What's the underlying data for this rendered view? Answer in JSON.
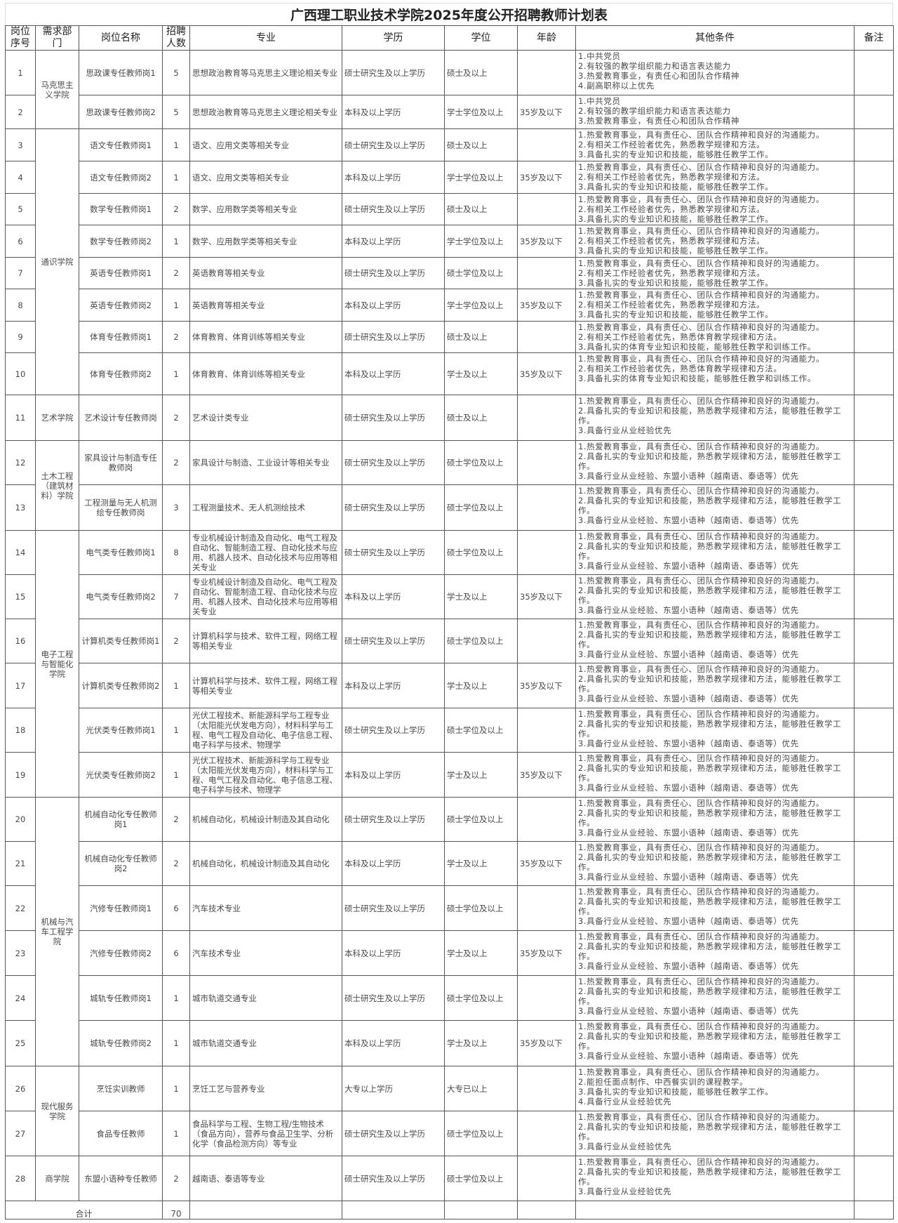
{
  "title": "广西理工职业技术学院2025年度公开招聘教师计划表",
  "headers": {
    "no": "岗位序号",
    "dept": "需求部门",
    "name": "岗位名称",
    "count": "招聘人数",
    "major": "专业",
    "edu": "学历",
    "degree": "学位",
    "age": "年龄",
    "conditions": "其他条件",
    "note": "备注"
  },
  "departments": [
    {
      "name": "马克思主义学院",
      "rows": [
        {
          "no": "1",
          "name": "思政课专任教师岗1",
          "count": "5",
          "major": "思想政治教育等马克思主义理论相关专业",
          "edu": "硕士研究生及以上学历",
          "degree": "硕士及以上",
          "age": "",
          "note": "",
          "conditions": [
            "1.中共党员",
            "2.有较强的教学组织能力和语言表达能力",
            "3.热爱教育事业，有责任心和团队合作精神",
            "4.副高职称以上优先"
          ]
        },
        {
          "no": "2",
          "name": "思政课专任教师岗2",
          "count": "5",
          "major": "思想政治教育等马克思主义理论相关专业",
          "edu": "本科及以上学历",
          "degree": "学士学位及以上",
          "age": "35岁及以下",
          "note": "",
          "conditions": [
            "1.中共党员",
            "2.有较强的教学组织能力和语言表达能力",
            "3.热爱教育事业，有责任心和团队合作精神"
          ]
        }
      ]
    },
    {
      "name": "通识学院",
      "rows": [
        {
          "no": "3",
          "name": "语文专任教师岗1",
          "count": "1",
          "major": "语文、应用文类等相关专业",
          "edu": "硕士研究生及以上学历",
          "degree": "硕士及以上",
          "age": "",
          "note": "",
          "conditions": [
            "1.热爱教育事业，具有责任心、团队合作精神和良好的沟通能力。",
            "2.有相关工作经验者优先，熟悉教学规律和方法。",
            "3.具备扎实的专业知识和技能，能够胜任教学工作。"
          ]
        },
        {
          "no": "4",
          "name": "语文专任教师岗2",
          "count": "1",
          "major": "语文、应用文类等相关专业",
          "edu": "本科及以上学历",
          "degree": "学士学位及以上",
          "age": "35岁及以下",
          "note": "",
          "conditions": [
            "1.热爱教育事业，具有责任心、团队合作精神和良好的沟通能力。",
            "2.有相关工作经验者优先，熟悉教学规律和方法。",
            "3.具备扎实的专业知识和技能，能够胜任教学工作。"
          ]
        },
        {
          "no": "5",
          "name": "数学专任教师岗1",
          "count": "2",
          "major": "数学、应用数学类等相关专业",
          "edu": "硕士研究生及以上学历",
          "degree": "硕士及以上",
          "age": "",
          "note": "",
          "conditions": [
            "1.热爱教育事业，具有责任心、团队合作精神和良好的沟通能力。",
            "2.有相关工作经验者优先，熟悉教学规律和方法。",
            "3.具备扎实的专业知识和技能，能够胜任教学工作。"
          ]
        },
        {
          "no": "6",
          "name": "数学专任教师岗2",
          "count": "1",
          "major": "数学、应用数学类等相关专业",
          "edu": "本科及以上学历",
          "degree": "学士学位及以上",
          "age": "35岁及以下",
          "note": "",
          "conditions": [
            "1.热爱教育事业，具有责任心、团队合作精神和良好的沟通能力。",
            "2.有相关工作经验者优先，熟悉教学规律和方法。",
            "3.具备扎实的专业知识和技能，能够胜任教学工作。"
          ]
        },
        {
          "no": "7",
          "name": "英语专任教师岗1",
          "count": "2",
          "major": "英语教育等相关专业",
          "edu": "硕士研究生及以上学历",
          "degree": "硕士学位及以上",
          "age": "",
          "note": "",
          "conditions": [
            "1.热爱教育事业，具有责任心、团队合作精神和良好的沟通能力。",
            "2.有相关工作经验者优先，熟悉教学规律和方法。",
            "3.具备扎实的专业知识和技能，能够胜任教学工作。"
          ]
        },
        {
          "no": "8",
          "name": "英语专任教师岗2",
          "count": "1",
          "major": "英语教育等相关专业",
          "edu": "本科及以上学历",
          "degree": "学士学位及以上",
          "age": "35岁及以下",
          "note": "",
          "conditions": [
            "1.热爱教育事业，具有责任心、团队合作精神和良好的沟通能力。",
            "2.有相关工作经验者优先，熟悉教学规律和方法。",
            "3.具备扎实的专业知识和技能，能够胜任教学工作。"
          ]
        },
        {
          "no": "9",
          "name": "体育专任教师岗1",
          "count": "2",
          "major": "体育教育、体育训练等相关专业",
          "edu": "硕士研究生及以上学历",
          "degree": "硕士及以上",
          "age": "",
          "note": "",
          "conditions": [
            "1.热爱教育事业，具有责任心、团队合作精神和良好的沟通能力。",
            "2.有相关工作经验者优先，熟悉体育教学规律和方法。",
            "3.具备扎实的体育专业知识和技能，能够胜任教学和训练工作。"
          ]
        },
        {
          "no": "10",
          "name": "体育专任教师岗2",
          "count": "1",
          "major": "体育教育、体育训练等相关专业",
          "edu": "本科及以上学历",
          "degree": "学士及以上",
          "age": "35岁及以下",
          "note": "",
          "conditions": [
            "1.热爱教育事业，具有责任心、团队合作精神和良好的沟通能力。",
            "2.有相关工作经验者优先，熟悉体育教学规律和方法。",
            "3.具备扎实的体育专业知识和技能，能够胜任教学和训练工作。"
          ]
        }
      ]
    },
    {
      "name": "艺术学院",
      "rows": [
        {
          "no": "11",
          "name": "艺术设计专任教师岗",
          "count": "2",
          "major": "艺术设计类专业",
          "edu": "硕士研究生及以上学历",
          "degree": "硕士及以上",
          "age": "",
          "note": "",
          "conditions": [
            "1.热爱教育事业，具有责任心、团队合作精神和良好的沟通能力。",
            "2.具备扎实的专业知识和技能，熟悉教学规律和方法，能够胜任教学工作。",
            "3.具备行业从业经验优先"
          ]
        }
      ]
    },
    {
      "name": "土木工程（建筑材料）学院",
      "rows": [
        {
          "no": "12",
          "name": "家具设计与制造专任教师岗",
          "count": "2",
          "major": "家具设计与制造、工业设计等相关专业",
          "edu": "硕士研究生及以上学历",
          "degree": "硕士学位及以上",
          "age": "",
          "note": "",
          "conditions": [
            "1.热爱教育事业，具有责任心、团队合作精神和良好的沟通能力。",
            "2.具备扎实的专业知识和技能，熟悉教学规律和方法，能够胜任教学工作。",
            "3.具备行业从业经验、东盟小语种（越南语、泰语等）优先"
          ]
        },
        {
          "no": "13",
          "name": "工程测量与无人机测绘专任教师岗",
          "count": "3",
          "major": "工程测量技术、无人机测绘技术",
          "edu": "硕士研究生及以上学历",
          "degree": "硕士学位及以上",
          "age": "",
          "note": "",
          "conditions": [
            "1.热爱教育事业，具有责任心、团队合作精神和良好的沟通能力。",
            "2.具备扎实的专业知识和技能，熟悉教学规律和方法，能够胜任教学工作。",
            "3.具备行业从业经验、东盟小语种（越南语、泰语等）优先"
          ]
        }
      ]
    },
    {
      "name": "电子工程与智能化学院",
      "rows": [
        {
          "no": "14",
          "name": "电气类专任教师岗1",
          "count": "8",
          "major": "专业机械设计制造及自动化、电气工程及自动化、智能制造工程、自动化技术与应用、机器人技术、自动化技术与应用等相关专业",
          "edu": "硕士研究生及以上学历",
          "degree": "硕士学位及以上",
          "age": "",
          "note": "",
          "conditions": [
            "1.热爱教育事业，具有责任心、团队合作精神和良好的沟通能力。",
            "2.具备扎实的专业知识和技能，熟悉教学规律和方法，能够胜任教学工作。",
            "3.具备行业从业经验、东盟小语种（越南语、泰语等）优先"
          ]
        },
        {
          "no": "15",
          "name": "电气类专任教师岗2",
          "count": "7",
          "major": "专业机械设计制造及自动化、电气工程及自动化、智能制造工程、自动化技术与应用、机器人技术、自动化技术与应用等相关专业",
          "edu": "本科及以上学历",
          "degree": "学士及以上",
          "age": "35岁及以下",
          "note": "",
          "conditions": [
            "1.热爱教育事业，具有责任心、团队合作精神和良好的沟通能力。",
            "2.具备扎实的专业知识和技能，熟悉教学规律和方法，能够胜任教学工作。",
            "3.具备行业从业经验、东盟小语种（越南语、泰语等）优先"
          ]
        },
        {
          "no": "16",
          "name": "计算机类专任教师岗1",
          "count": "2",
          "major": "计算机科学与技术、软件工程，网络工程等相关专业",
          "edu": "硕士研究生及以上学历",
          "degree": "硕士学位及以上",
          "age": "",
          "note": "",
          "conditions": [
            "1.热爱教育事业，具有责任心、团队合作精神和良好的沟通能力。",
            "2.具备扎实的专业知识和技能，熟悉教学规律和方法，能够胜任教学工作。",
            "3.具备行业从业经验、东盟小语种（越南语、泰语等）优先"
          ]
        },
        {
          "no": "17",
          "name": "计算机类专任教师岗2",
          "count": "1",
          "major": "计算机科学与技术、软件工程，网络工程等相关专业",
          "edu": "本科及以上学历",
          "degree": "学士及以上",
          "age": "35岁及以下",
          "note": "",
          "conditions": [
            "1.热爱教育事业，具有责任心、团队合作精神和良好的沟通能力。",
            "2.具备扎实的专业知识和技能，熟悉教学规律和方法，能够胜任教学工作。",
            "3.具备行业从业经验、东盟小语种（越南语、泰语等）优先"
          ]
        },
        {
          "no": "18",
          "name": "光伏类专任教师岗1",
          "count": "1",
          "major": "光伏工程技术、新能源科学与工程专业（太阳能光伏发电方向），材料科学与工程、电气工程及自动化、电子信息工程、电子科学与技术、物理学",
          "edu": "硕士研究生及以上学历",
          "degree": "硕士学位及以上",
          "age": "",
          "note": "",
          "conditions": [
            "1.热爱教育事业，具有责任心、团队合作精神和良好的沟通能力。",
            "2.具备扎实的专业知识和技能，熟悉教学规律和方法，能够胜任教学工作。",
            "3.具备行业从业经验、东盟小语种（越南语、泰语等）优先"
          ]
        },
        {
          "no": "19",
          "name": "光伏类专任教师岗2",
          "count": "1",
          "major": "光伏工程技术、新能源科学与工程专业（太阳能光伏发电方向），材料科学与工程、电气工程及自动化、电子信息工程、电子科学与技术、物理学",
          "edu": "本科及以上学历",
          "degree": "学士及以上",
          "age": "35岁及以下",
          "note": "",
          "conditions": [
            "1.热爱教育事业，具有责任心、团队合作精神和良好的沟通能力。",
            "2.具备扎实的专业知识和技能，熟悉教学规律和方法，能够胜任教学工作。",
            "3.具备行业从业经验、东盟小语种（越南语、泰语等）优先"
          ]
        }
      ]
    },
    {
      "name": "机械与汽车工程学院",
      "rows": [
        {
          "no": "20",
          "name": "机械自动化专任教师岗1",
          "count": "2",
          "major": "机械自动化，机械设计制造及其自动化",
          "edu": "硕士研究生及以上学历",
          "degree": "硕士学位及以上",
          "age": "",
          "note": "",
          "conditions": [
            "1.热爱教育事业，具有责任心、团队合作精神和良好的沟通能力。",
            "2.具备扎实的专业知识和技能，熟悉教学规律和方法，能够胜任教学工作。",
            "3.具备行业从业经验、东盟小语种（越南语、泰语等）优先"
          ]
        },
        {
          "no": "21",
          "name": "机械自动化专任教师岗2",
          "count": "2",
          "major": "机械自动化，机械设计制造及其自动化",
          "edu": "本科及以上学历",
          "degree": "学士及以上",
          "age": "35岁及以下",
          "note": "",
          "conditions": [
            "1.热爱教育事业，具有责任心、团队合作精神和良好的沟通能力。",
            "2.具备扎实的专业知识和技能，熟悉教学规律和方法，能够胜任教学工作。",
            "3.具备行业从业经验、东盟小语种（越南语、泰语等）优先"
          ]
        },
        {
          "no": "22",
          "name": "汽修专任教师岗1",
          "count": "6",
          "major": "汽车技术专业",
          "edu": "硕士研究生及以上学历",
          "degree": "硕士学位及以上",
          "age": "",
          "note": "",
          "conditions": [
            "1.热爱教育事业，具有责任心、团队合作精神和良好的沟通能力。",
            "2.具备扎实的专业知识和技能，熟悉教学规律和方法，能够胜任教学工作。",
            "3.具备行业从业经验、东盟小语种（越南语、泰语等）优先"
          ]
        },
        {
          "no": "23",
          "name": "汽修专任教师岗2",
          "count": "6",
          "major": "汽车技术专业",
          "edu": "本科及以上学历",
          "degree": "学士及以上",
          "age": "35岁及以下",
          "note": "",
          "conditions": [
            "1.热爱教育事业，具有责任心、团队合作精神和良好的沟通能力。",
            "2.具备扎实的专业知识和技能，熟悉教学规律和方法，能够胜任教学工作。",
            "3.具备行业从业经验、东盟小语种（越南语、泰语等）优先"
          ]
        },
        {
          "no": "24",
          "name": "城轨专任教师岗1",
          "count": "1",
          "major": "城市轨道交通专业",
          "edu": "硕士研究生及以上学历",
          "degree": "硕士学位及以上",
          "age": "",
          "note": "",
          "conditions": [
            "1.热爱教育事业，具有责任心、团队合作精神和良好的沟通能力。",
            "2.具备扎实的专业知识和技能，熟悉教学规律和方法，能够胜任教学工作。",
            "3.具备行业从业经验、东盟小语种（越南语、泰语等）优先"
          ]
        },
        {
          "no": "25",
          "name": "城轨专任教师岗2",
          "count": "1",
          "major": "城市轨道交通专业",
          "edu": "本科及以上学历",
          "degree": "学士及以上",
          "age": "35岁及以下",
          "note": "",
          "conditions": [
            "1.热爱教育事业，具有责任心、团队合作精神和良好的沟通能力。",
            "2.具备扎实的专业知识和技能，熟悉教学规律和方法，能够胜任教学工作。",
            "3.具备行业从业经验、东盟小语种（越南语、泰语等）优先"
          ]
        }
      ]
    },
    {
      "name": "现代服务学院",
      "rows": [
        {
          "no": "26",
          "name": "烹饪实训教师",
          "count": "1",
          "major": "烹饪工艺与营养专业",
          "edu": "大专以上学历",
          "degree": "大专已以上",
          "age": "",
          "note": "",
          "conditions": [
            "1.热爱教育事业，具有责任心、团队合作精神和良好的沟通能力。",
            "2.能担任面点制作、中西餐实训的课程教学。",
            "3.具备扎实的专业知识和技能，能够胜任教学工作。",
            "4.具备行业从业经验优先"
          ]
        },
        {
          "no": "27",
          "name": "食品专任教师",
          "count": "1",
          "major": "食品科学与工程、生物工程/生物技术（食品方向），营养与食品卫生学、分析化学（食品检测方向）等专业",
          "edu": "硕士研究生及以上学历",
          "degree": "硕士学位及以上",
          "age": "",
          "note": "",
          "conditions": [
            "1.热爱教育事业，具有责任心、团队合作精神和良好的沟通能力。",
            "2.具备扎实的专业知识和技能，熟悉教学规律和方法，能够胜任教学工作。",
            "3.具备行业从业经验优先"
          ]
        }
      ]
    },
    {
      "name": "商学院",
      "rows": [
        {
          "no": "28",
          "name": "东盟小语种专任教师",
          "count": "2",
          "major": "越南语、泰语等专业",
          "edu": "硕士研究生及以上学历",
          "degree": "硕士学位及以上",
          "age": "",
          "note": "",
          "conditions": [
            "1.热爱教育事业，具有责任心、团队合作精神和良好的沟通能力。",
            "2.具备扎实的专业知识和技能，熟悉教学规律和方法，能够胜任教学工作。",
            "3.具备行业从业经验优先"
          ]
        }
      ]
    }
  ],
  "total": {
    "label": "合计",
    "count": "70"
  }
}
